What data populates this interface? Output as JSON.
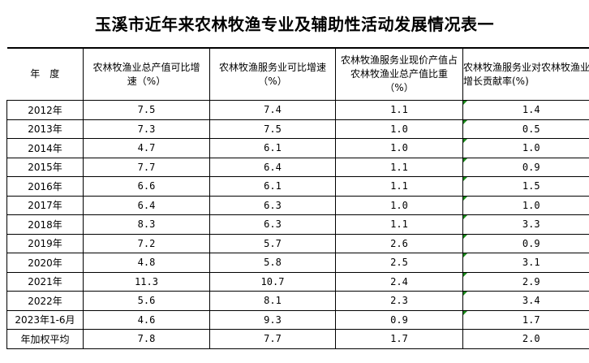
{
  "title": "玉溪市近年来农林牧渔专业及辅助性活动发展情况表一",
  "headers": [
    "年　度",
    "农林牧渔业总产值可比增速（%）",
    "农林牧渔服务业可比增速（%）",
    "农林牧渔服务业现价产值占农林牧渔业总产值比重（%）",
    "农林牧渔服务业对农林牧渔业增长贡献率(%)"
  ],
  "rows": [
    [
      "2012年",
      "7.5",
      "7.4",
      "1.1",
      "1.4"
    ],
    [
      "2013年",
      "7.3",
      "7.5",
      "1.0",
      "0.5"
    ],
    [
      "2014年",
      "4.7",
      "6.1",
      "1.0",
      "1.0"
    ],
    [
      "2015年",
      "7.7",
      "6.4",
      "1.1",
      "0.9"
    ],
    [
      "2016年",
      "6.6",
      "6.1",
      "1.1",
      "1.5"
    ],
    [
      "2017年",
      "6.4",
      "6.3",
      "1.0",
      "1.0"
    ],
    [
      "2018年",
      "8.3",
      "6.3",
      "1.1",
      "3.3"
    ],
    [
      "2019年",
      "7.2",
      "5.7",
      "2.6",
      "0.9"
    ],
    [
      "2020年",
      "4.8",
      "5.8",
      "2.5",
      "3.1"
    ],
    [
      "2021年",
      "11.3",
      "10.7",
      "2.4",
      "2.9"
    ],
    [
      "2022年",
      "5.6",
      "8.1",
      "2.3",
      "3.4"
    ],
    [
      "2023年1-6月",
      "4.6",
      "9.3",
      "0.9",
      "1.7"
    ],
    [
      "年加权平均",
      "7.8",
      "7.7",
      "1.7",
      "2.0"
    ]
  ],
  "colors": {
    "cell_marker": "#1a8a1a",
    "border": "#000000"
  }
}
